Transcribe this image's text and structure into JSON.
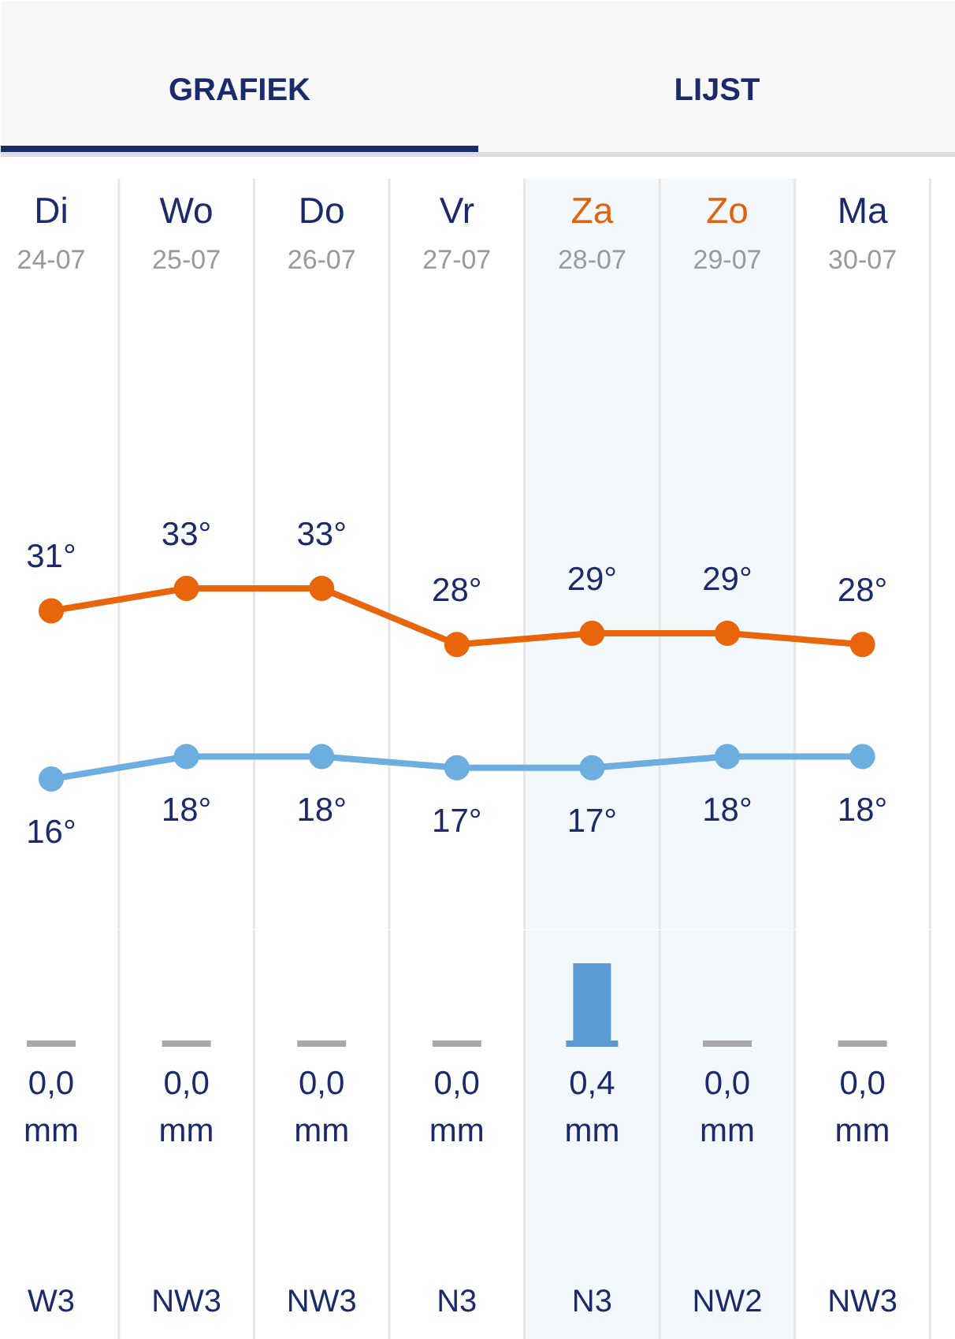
{
  "chart_data": [
    {
      "type": "line",
      "categories": [
        "Di 24-07",
        "Wo 25-07",
        "Do 26-07",
        "Vr 27-07",
        "Za 28-07",
        "Zo 29-07",
        "Ma 30-07"
      ],
      "series": [
        {
          "color": "#e8650c",
          "values": [
            31,
            33,
            33,
            28,
            29,
            29,
            28
          ],
          "value_labels": [
            "31°",
            "33°",
            "33°",
            "28°",
            "29°",
            "29°",
            "28°"
          ]
        },
        {
          "color": "#6caee0",
          "values": [
            16,
            18,
            18,
            17,
            17,
            18,
            18
          ],
          "value_labels": [
            "16°",
            "18°",
            "18°",
            "17°",
            "17°",
            "18°",
            "18°"
          ]
        }
      ],
      "bands": [
        {
          "axis": "x",
          "from": "Za 28-07",
          "to": "Zo 29-07",
          "color": "#f3f8fc"
        }
      ],
      "annotations": [
        "GRAFIEK",
        "LIJST"
      ],
      "grid": "x",
      "marker": "circle",
      "line_style": "solid",
      "tick_labels": "x"
    },
    {
      "type": "bar",
      "categories": [
        "Di 24-07",
        "Wo 25-07",
        "Do 26-07",
        "Vr 27-07",
        "Za 28-07",
        "Zo 29-07",
        "Ma 30-07"
      ],
      "values": [
        0,
        0,
        0,
        0,
        0.4,
        0,
        0
      ],
      "colors": [
        "#a8a8a8",
        "#a8a8a8",
        "#a8a8a8",
        "#a8a8a8",
        "#5b9bd5",
        "#a8a8a8",
        "#a8a8a8"
      ],
      "value_labels": [
        "0,0 mm",
        "0,0 mm",
        "0,0 mm",
        "0,0 mm",
        "0,4 mm",
        "0,0 mm",
        "0,0 mm"
      ],
      "bands": [
        {
          "axis": "x",
          "from": "Za 28-07",
          "to": "Zo 29-07",
          "color": "#f3f8fc"
        }
      ],
      "annotations": [
        "W3",
        "NW3",
        "NW3",
        "N3",
        "N3",
        "NW2",
        "NW3"
      ],
      "grid": "x",
      "tick_labels": false
    }
  ]
}
